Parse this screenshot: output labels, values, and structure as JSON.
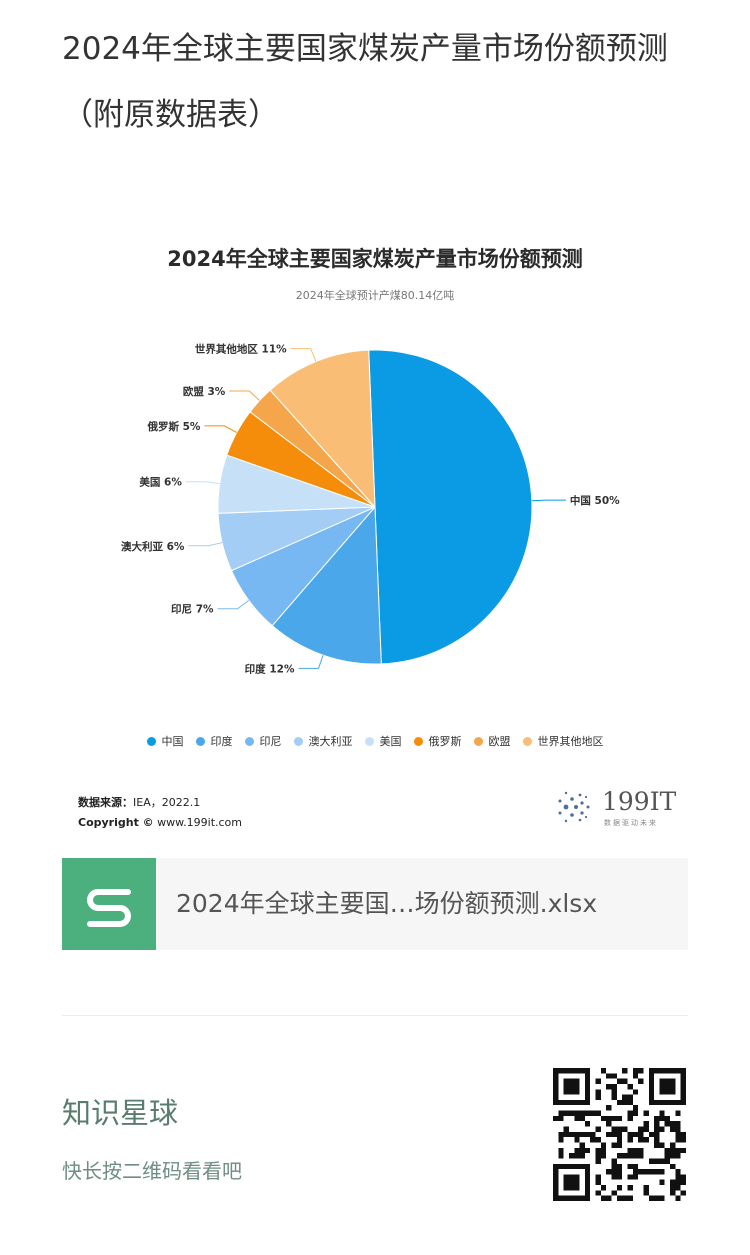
{
  "page": {
    "title": "2024年全球主要国家煤炭产量市场份额预测（附原数据表）"
  },
  "chart_data": {
    "type": "pie",
    "title": "2024年全球主要国家煤炭产量市场份额预测",
    "subtitle": "2024年全球预计产煤80.14亿吨",
    "slices": [
      {
        "name": "中国",
        "value": 50,
        "label": "中国 50%",
        "color": "#0b9ae4"
      },
      {
        "name": "印度",
        "value": 12,
        "label": "印度 12%",
        "color": "#4aa8ea"
      },
      {
        "name": "印尼",
        "value": 7,
        "label": "印尼 7%",
        "color": "#78b8f2"
      },
      {
        "name": "澳大利亚",
        "value": 6,
        "label": "澳大利亚 6%",
        "color": "#a3cdf5"
      },
      {
        "name": "美国",
        "value": 6,
        "label": "美国 6%",
        "color": "#c6e0f8"
      },
      {
        "name": "俄罗斯",
        "value": 5,
        "label": "俄罗斯 5%",
        "color": "#f58c0a"
      },
      {
        "name": "欧盟",
        "value": 3,
        "label": "欧盟 3%",
        "color": "#f6a64a"
      },
      {
        "name": "世界其他地区",
        "value": 11,
        "label": "世界其他地区 11%",
        "color": "#f9bd76"
      }
    ],
    "legend_position": "bottom"
  },
  "source": {
    "label": "数据来源：",
    "value": "IEA，2022.1",
    "copyright_label": "Copyright ©",
    "copyright_value": "www.199it.com"
  },
  "brand": {
    "name": "199IT",
    "tagline": "数据驱动未来"
  },
  "file": {
    "name": "2024年全球主要国…场份额预测.xlsx",
    "icon": "spreadsheet-s-icon"
  },
  "community": {
    "name": "知识星球",
    "hint": "快长按二维码看看吧"
  }
}
